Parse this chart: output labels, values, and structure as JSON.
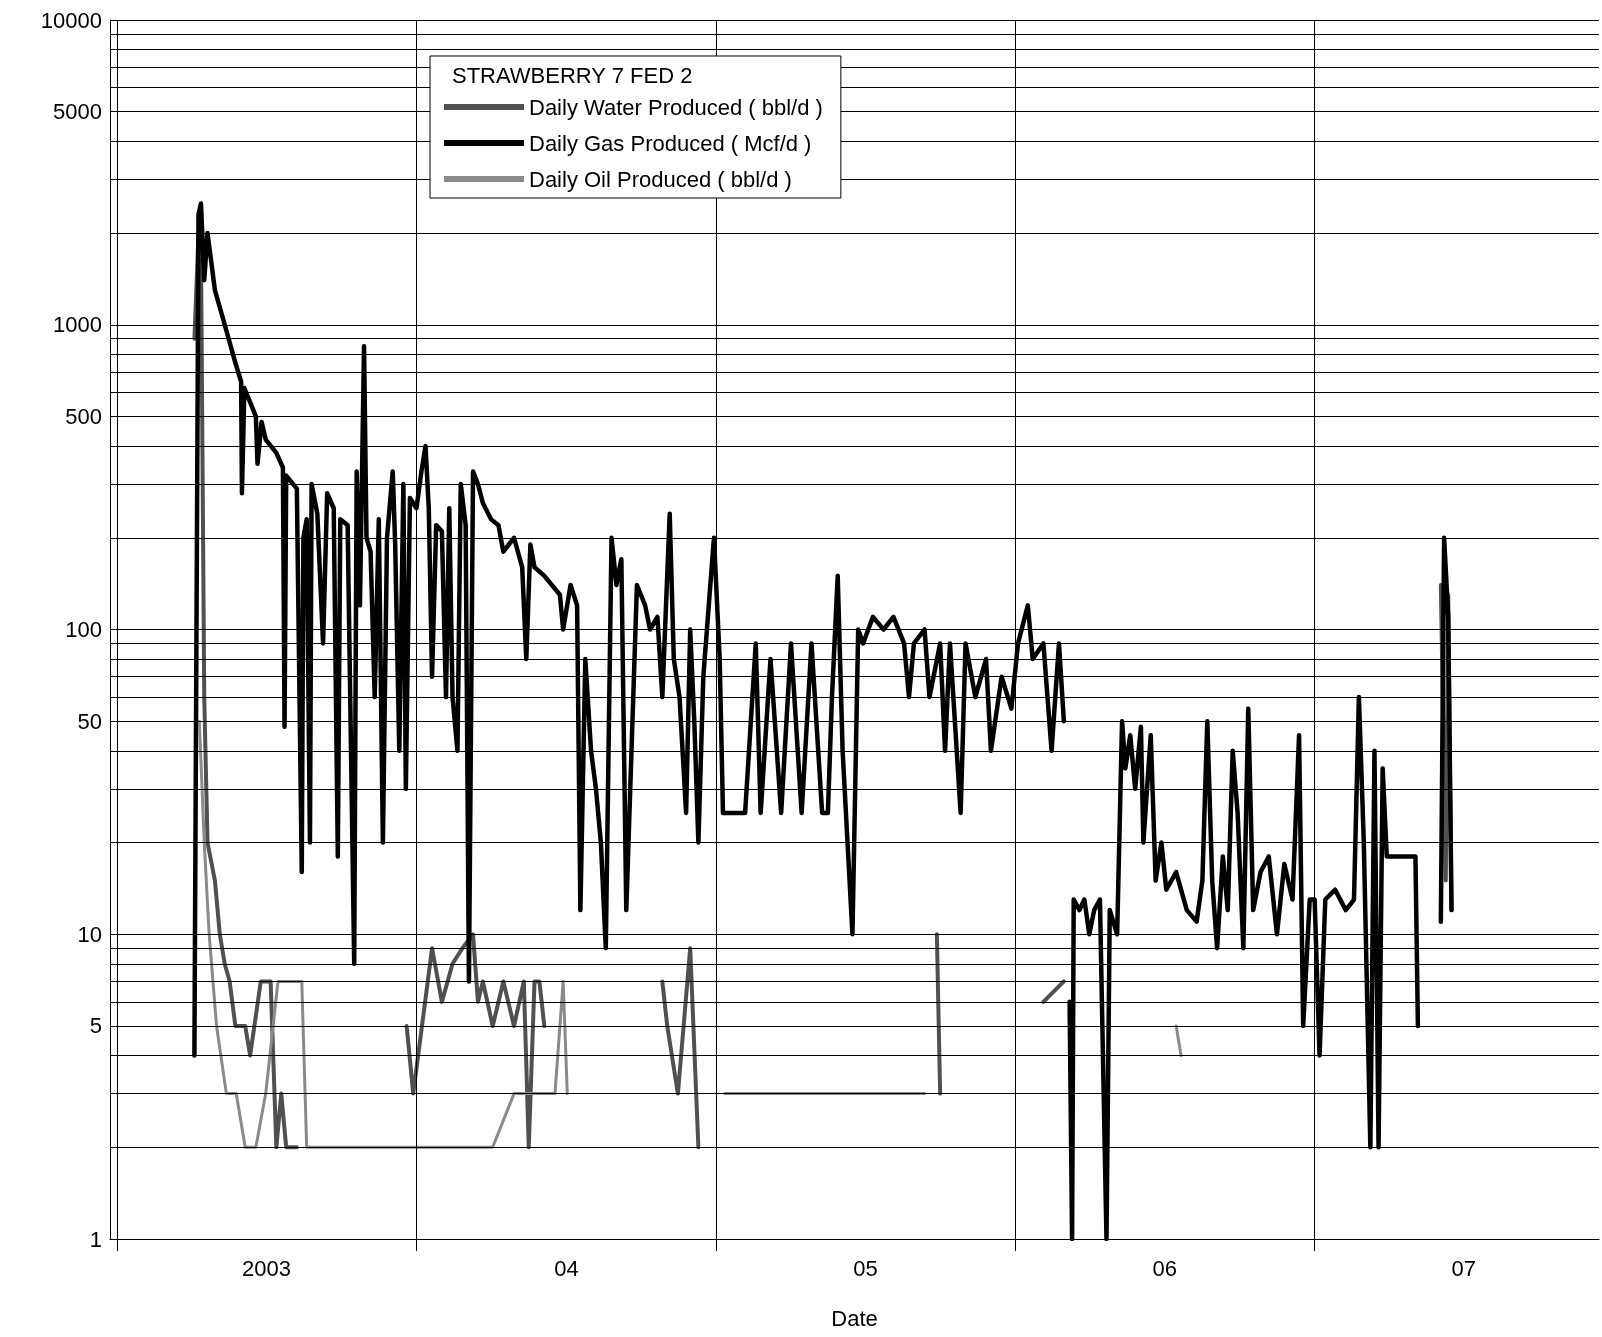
{
  "chart_data": {
    "type": "line",
    "xlabel": "Date",
    "legend_title": "STRAWBERRY 7 FED 2",
    "legend": "top",
    "log": true,
    "grid": true,
    "marker": "none",
    "line_style": "solid",
    "xlim": [
      "2002-12-23",
      "2007-12-14"
    ],
    "xticks": [
      {
        "value": "2003-01-01",
        "label": null
      },
      {
        "value": "2003-07-02",
        "label": "2003"
      },
      {
        "value": "2004-01-01",
        "label": null
      },
      {
        "value": "2004-07-02",
        "label": "04"
      },
      {
        "value": "2005-01-01",
        "label": null
      },
      {
        "value": "2005-07-02",
        "label": "05"
      },
      {
        "value": "2006-01-01",
        "label": null
      },
      {
        "value": "2006-07-02",
        "label": "06"
      },
      {
        "value": "2007-01-01",
        "label": null
      },
      {
        "value": "2007-07-02",
        "label": "07"
      }
    ],
    "ylim": [
      1,
      10000
    ],
    "yticks": [
      1,
      {
        "value": 2,
        "label": null
      },
      {
        "value": 3,
        "label": null
      },
      {
        "value": 4,
        "label": null
      },
      5,
      {
        "value": 6,
        "label": null
      },
      {
        "value": 7,
        "label": null
      },
      {
        "value": 8,
        "label": null
      },
      {
        "value": 9,
        "label": null
      },
      10,
      {
        "value": 20,
        "label": null
      },
      {
        "value": 30,
        "label": null
      },
      {
        "value": 40,
        "label": null
      },
      50,
      {
        "value": 60,
        "label": null
      },
      {
        "value": 70,
        "label": null
      },
      {
        "value": 80,
        "label": null
      },
      {
        "value": 90,
        "label": null
      },
      100,
      {
        "value": 200,
        "label": null
      },
      {
        "value": 300,
        "label": null
      },
      {
        "value": 400,
        "label": null
      },
      500,
      {
        "value": 600,
        "label": null
      },
      {
        "value": 700,
        "label": null
      },
      {
        "value": 800,
        "label": null
      },
      {
        "value": 900,
        "label": null
      },
      1000,
      {
        "value": 2000,
        "label": null
      },
      {
        "value": 3000,
        "label": null
      },
      {
        "value": 4000,
        "label": null
      },
      5000,
      {
        "value": 6000,
        "label": null
      },
      {
        "value": 7000,
        "label": null
      },
      {
        "value": 8000,
        "label": null
      },
      {
        "value": 9000,
        "label": null
      },
      10000
    ],
    "series": [
      {
        "name": "Daily Water Produced ( bbl/d )",
        "color": "#505050",
        "x": [
          "2003-04-05",
          "2003-04-10",
          "2003-04-13",
          "2003-04-17",
          "2003-04-21",
          "2003-04-30",
          "2003-05-06",
          "2003-05-12",
          "2003-05-18",
          "2003-05-25",
          "2003-06-06",
          "2003-06-12",
          "2003-06-25",
          "2003-07-07",
          "2003-07-14",
          "2003-07-20",
          "2003-07-26",
          "2003-08-08",
          "2003-09-01",
          "2003-12-20",
          "2003-12-28",
          "2004-01-20",
          "2004-02-01",
          "2004-02-14",
          "2004-02-26",
          "2004-03-10",
          "2004-03-16",
          "2004-03-22",
          "2004-04-03",
          "2004-04-16",
          "2004-04-29",
          "2004-05-11",
          "2004-05-17",
          "2004-05-24",
          "2004-05-30",
          "2004-06-05",
          "2004-07-01",
          "2004-10-27",
          "2004-11-02",
          "2004-11-15",
          "2004-11-30",
          "2004-12-10",
          "2005-01-01",
          "2005-09-27",
          "2005-10-01",
          "2005-10-15",
          "2006-02-04",
          "2006-03-01",
          "2006-06-01",
          "2007-06-04",
          "2007-06-10",
          "2007-06-13",
          "2007-06-17"
        ],
        "values": [
          900,
          2000,
          1800,
          60,
          20,
          15,
          10,
          8,
          7,
          5,
          5,
          4,
          7,
          7,
          2,
          3,
          2,
          2,
          null,
          5,
          3,
          9,
          6,
          8,
          9,
          10,
          6,
          7,
          5,
          7,
          5,
          7,
          2,
          7,
          7,
          5,
          null,
          7,
          5,
          3,
          9,
          2,
          null,
          10,
          3,
          null,
          6,
          7,
          null,
          140,
          15,
          130,
          12
        ]
      },
      {
        "name": "Daily Gas Produced ( Mcf/d )",
        "color": "#000000",
        "x": [
          "2003-04-05",
          "2003-04-10",
          "2003-04-13",
          "2003-04-17",
          "2003-04-21",
          "2003-04-30",
          "2003-05-12",
          "2003-05-25",
          "2003-06-01",
          "2003-06-02",
          "2003-06-05",
          "2003-06-19",
          "2003-06-21",
          "2003-06-26",
          "2003-07-01",
          "2003-07-14",
          "2003-07-22",
          "2003-07-24",
          "2003-07-26",
          "2003-08-08",
          "2003-08-14",
          "2003-08-16",
          "2003-08-20",
          "2003-08-24",
          "2003-08-26",
          "2003-09-02",
          "2003-09-09",
          "2003-09-14",
          "2003-09-22",
          "2003-09-27",
          "2003-09-30",
          "2003-10-09",
          "2003-10-17",
          "2003-10-20",
          "2003-10-24",
          "2003-10-29",
          "2003-11-01",
          "2003-11-06",
          "2003-11-11",
          "2003-11-16",
          "2003-11-21",
          "2003-11-26",
          "2003-12-03",
          "2003-12-06",
          "2003-12-11",
          "2003-12-16",
          "2003-12-19",
          "2003-12-24",
          "2004-01-01",
          "2004-01-07",
          "2004-01-12",
          "2004-01-16",
          "2004-01-20",
          "2004-01-25",
          "2004-02-01",
          "2004-02-06",
          "2004-02-10",
          "2004-02-14",
          "2004-02-20",
          "2004-02-24",
          "2004-03-01",
          "2004-03-05",
          "2004-03-10",
          "2004-03-16",
          "2004-03-22",
          "2004-04-01",
          "2004-04-10",
          "2004-04-16",
          "2004-04-29",
          "2004-05-09",
          "2004-05-14",
          "2004-05-19",
          "2004-05-24",
          "2004-06-05",
          "2004-06-24",
          "2004-06-28",
          "2004-07-07",
          "2004-07-15",
          "2004-07-19",
          "2004-07-25",
          "2004-08-01",
          "2004-08-07",
          "2004-08-13",
          "2004-08-19",
          "2004-08-26",
          "2004-09-01",
          "2004-09-07",
          "2004-09-13",
          "2004-09-26",
          "2004-10-06",
          "2004-10-12",
          "2004-10-21",
          "2004-10-27",
          "2004-11-05",
          "2004-11-10",
          "2004-11-17",
          "2004-11-25",
          "2004-11-30",
          "2004-12-05",
          "2004-12-10",
          "2004-12-16",
          "2004-12-29",
          "2005-01-05",
          "2005-01-09",
          "2005-02-05",
          "2005-02-18",
          "2005-02-24",
          "2005-03-08",
          "2005-03-21",
          "2005-04-02",
          "2005-04-15",
          "2005-04-27",
          "2005-05-10",
          "2005-05-17",
          "2005-05-22",
          "2005-05-29",
          "2005-06-04",
          "2005-06-10",
          "2005-06-16",
          "2005-06-23",
          "2005-06-29",
          "2005-07-11",
          "2005-07-24",
          "2005-08-05",
          "2005-08-18",
          "2005-08-24",
          "2005-08-30",
          "2005-09-12",
          "2005-09-18",
          "2005-10-01",
          "2005-10-07",
          "2005-10-13",
          "2005-10-26",
          "2005-11-01",
          "2005-11-13",
          "2005-11-26",
          "2005-12-02",
          "2005-12-15",
          "2005-12-27",
          "2006-01-04",
          "2006-01-16",
          "2006-01-22",
          "2006-02-04",
          "2006-02-14",
          "2006-02-23",
          "2006-03-01",
          "2006-03-04",
          "2006-03-08",
          "2006-03-11",
          "2006-03-13",
          "2006-03-20",
          "2006-03-26",
          "2006-04-01",
          "2006-04-07",
          "2006-04-14",
          "2006-04-22",
          "2006-04-26",
          "2006-05-05",
          "2006-05-11",
          "2006-05-15",
          "2006-05-21",
          "2006-05-27",
          "2006-06-03",
          "2006-06-06",
          "2006-06-15",
          "2006-06-21",
          "2006-06-28",
          "2006-07-04",
          "2006-07-16",
          "2006-07-29",
          "2006-08-10",
          "2006-08-17",
          "2006-08-23",
          "2006-08-29",
          "2006-09-04",
          "2006-09-11",
          "2006-09-17",
          "2006-09-23",
          "2006-09-29",
          "2006-10-06",
          "2006-10-12",
          "2006-10-18",
          "2006-10-27",
          "2006-11-06",
          "2006-11-16",
          "2006-11-25",
          "2006-12-05",
          "2006-12-13",
          "2006-12-18",
          "2006-12-26",
          "2007-01-01",
          "2007-01-07",
          "2007-01-14",
          "2007-01-26",
          "2007-02-08",
          "2007-02-18",
          "2007-02-24",
          "2007-03-02",
          "2007-03-10",
          "2007-03-15",
          "2007-03-20",
          "2007-03-25",
          "2007-03-30",
          "2007-04-17",
          "2007-05-04",
          "2007-05-07",
          "2007-05-20",
          "2007-06-04",
          "2007-06-08",
          "2007-06-13",
          "2007-06-17"
        ],
        "values": [
          4,
          2300,
          2500,
          1400,
          2000,
          1300,
          1000,
          750,
          650,
          280,
          620,
          500,
          350,
          480,
          420,
          380,
          340,
          48,
          320,
          290,
          16,
          200,
          230,
          20,
          300,
          240,
          90,
          280,
          250,
          18,
          230,
          220,
          8,
          330,
          120,
          850,
          200,
          180,
          60,
          230,
          20,
          200,
          330,
          190,
          40,
          300,
          30,
          270,
          250,
          330,
          400,
          250,
          70,
          220,
          210,
          60,
          250,
          60,
          40,
          300,
          220,
          7,
          330,
          300,
          260,
          230,
          220,
          180,
          200,
          160,
          80,
          190,
          160,
          150,
          130,
          100,
          140,
          120,
          12,
          80,
          40,
          30,
          20,
          9,
          200,
          140,
          170,
          12,
          140,
          120,
          100,
          110,
          60,
          240,
          80,
          60,
          25,
          100,
          50,
          20,
          70,
          200,
          80,
          25,
          25,
          90,
          25,
          80,
          25,
          90,
          25,
          90,
          25,
          25,
          60,
          150,
          40,
          20,
          10,
          100,
          90,
          110,
          100,
          110,
          90,
          60,
          90,
          100,
          60,
          90,
          40,
          90,
          25,
          90,
          60,
          80,
          40,
          70,
          55,
          90,
          120,
          80,
          90,
          40,
          90,
          50,
          null,
          6,
          1,
          13,
          12,
          13,
          10,
          12,
          13,
          1,
          12,
          10,
          50,
          35,
          45,
          30,
          48,
          20,
          45,
          15,
          20,
          14,
          16,
          12,
          11,
          15,
          50,
          15,
          9,
          18,
          12,
          40,
          25,
          9,
          55,
          12,
          16,
          18,
          10,
          17,
          13,
          45,
          5,
          13,
          13,
          4,
          13,
          14,
          12,
          13,
          60,
          20,
          2,
          40,
          2,
          35,
          18,
          18,
          18,
          5,
          null,
          11,
          200,
          110,
          12
        ]
      },
      {
        "name": "Daily Oil Produced ( bbl/d )",
        "color": "#8a8a8a",
        "x": [
          "2003-04-11",
          "2003-04-17",
          "2003-04-23",
          "2003-05-02",
          "2003-05-14",
          "2003-05-26",
          "2003-06-06",
          "2003-06-19",
          "2003-07-01",
          "2003-07-16",
          "2003-07-26",
          "2003-08-14",
          "2003-08-20",
          "2003-09-14",
          "2003-10-09",
          "2003-11-03",
          "2003-11-28",
          "2003-12-23",
          "2004-01-20",
          "2004-02-14",
          "2004-03-10",
          "2004-04-03",
          "2004-04-29",
          "2004-05-24",
          "2004-06-18",
          "2004-06-28",
          "2004-07-03",
          "2004-09-01",
          "2005-01-11",
          "2005-02-24",
          "2005-03-21",
          "2005-04-15",
          "2005-05-10",
          "2005-06-04",
          "2005-06-29",
          "2005-08-18",
          "2005-09-12",
          "2006-01-01",
          "2006-07-16",
          "2006-07-22"
        ],
        "values": [
          50,
          20,
          10,
          5,
          3,
          3,
          2,
          2,
          3,
          7,
          7,
          7,
          2,
          2,
          2,
          2,
          2,
          2,
          2,
          2,
          2,
          2,
          3,
          3,
          3,
          7,
          3,
          null,
          3,
          3,
          3,
          3,
          3,
          3,
          3,
          3,
          3,
          null,
          5,
          4
        ]
      }
    ]
  }
}
